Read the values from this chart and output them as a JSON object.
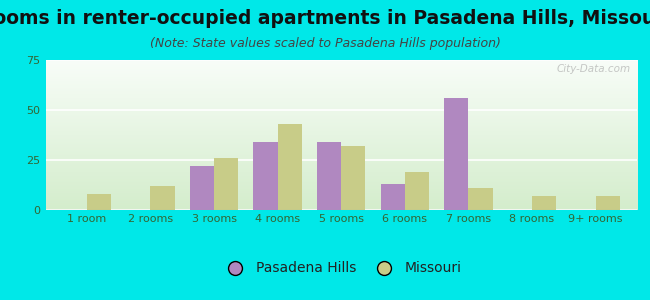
{
  "title": "Rooms in renter-occupied apartments in Pasadena Hills, Missouri",
  "subtitle": "(Note: State values scaled to Pasadena Hills population)",
  "categories": [
    "1 room",
    "2 rooms",
    "3 rooms",
    "4 rooms",
    "5 rooms",
    "6 rooms",
    "7 rooms",
    "8 rooms",
    "9+ rooms"
  ],
  "pasadena_hills": [
    0,
    0,
    22,
    34,
    34,
    13,
    56,
    0,
    0
  ],
  "missouri": [
    8,
    12,
    26,
    43,
    32,
    19,
    11,
    7,
    7
  ],
  "pasadena_color": "#b088c0",
  "missouri_color": "#c8cc88",
  "background_color": "#00e8e8",
  "ylim": [
    0,
    75
  ],
  "yticks": [
    0,
    25,
    50,
    75
  ],
  "bar_width": 0.38,
  "title_fontsize": 13.5,
  "subtitle_fontsize": 9,
  "axis_fontsize": 8,
  "legend_fontsize": 10
}
